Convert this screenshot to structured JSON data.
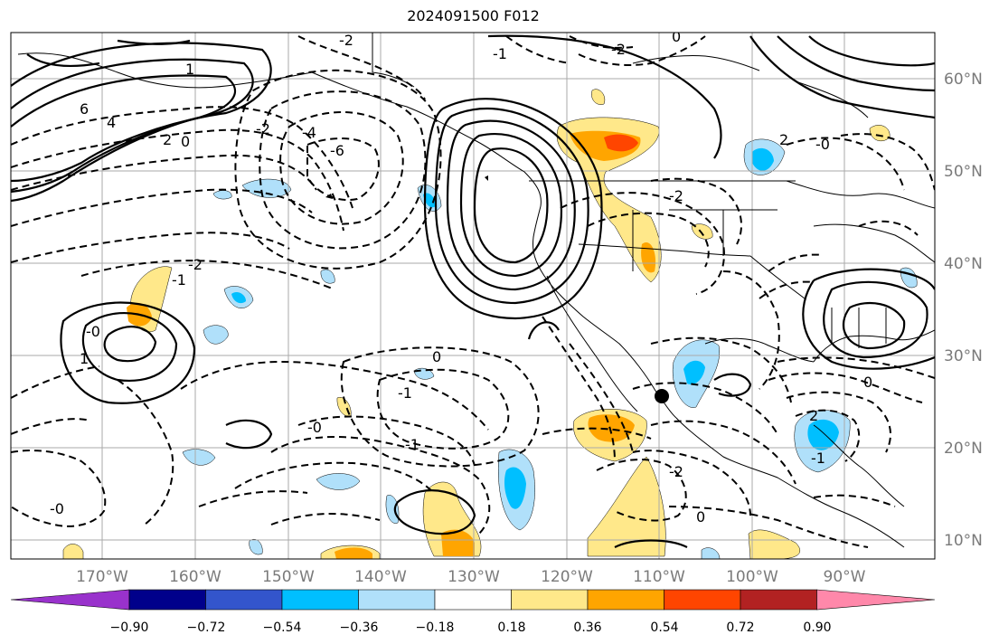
{
  "title": "2024091500 F012",
  "axes": {
    "lon_ticks": [
      "170°W",
      "160°W",
      "150°W",
      "140°W",
      "130°W",
      "120°W",
      "110°W",
      "100°W",
      "90°W"
    ],
    "lat_ticks": [
      "60°N",
      "50°N",
      "40°N",
      "30°N",
      "20°N",
      "10°N"
    ]
  },
  "colorbar": {
    "colors": [
      "#9932cc",
      "#00008b",
      "#3355cc",
      "#00bfff",
      "#b0e0fa",
      "#ffffff",
      "#ffe88a",
      "#ffa500",
      "#ff4500",
      "#b22222",
      "#ff88aa"
    ],
    "labels": [
      "−0.90",
      "−0.72",
      "−0.54",
      "−0.36",
      "−0.18",
      "0.18",
      "0.36",
      "0.54",
      "0.72",
      "0.90"
    ]
  },
  "contour_labels": [
    "6",
    "4",
    "2",
    "0",
    "-2",
    "-4",
    "-6",
    "-2",
    "-1",
    "-2",
    "1",
    "0",
    "-0",
    "-1",
    "-2",
    "2",
    "-0",
    "1",
    "-1",
    "-2",
    "0",
    "-0",
    "-1",
    "-2",
    "-1",
    "0",
    "2",
    "0",
    "-0"
  ],
  "colors": {
    "border": "#000000",
    "grid": "#aaaaaa",
    "tick_text": "#7a7a7a"
  }
}
